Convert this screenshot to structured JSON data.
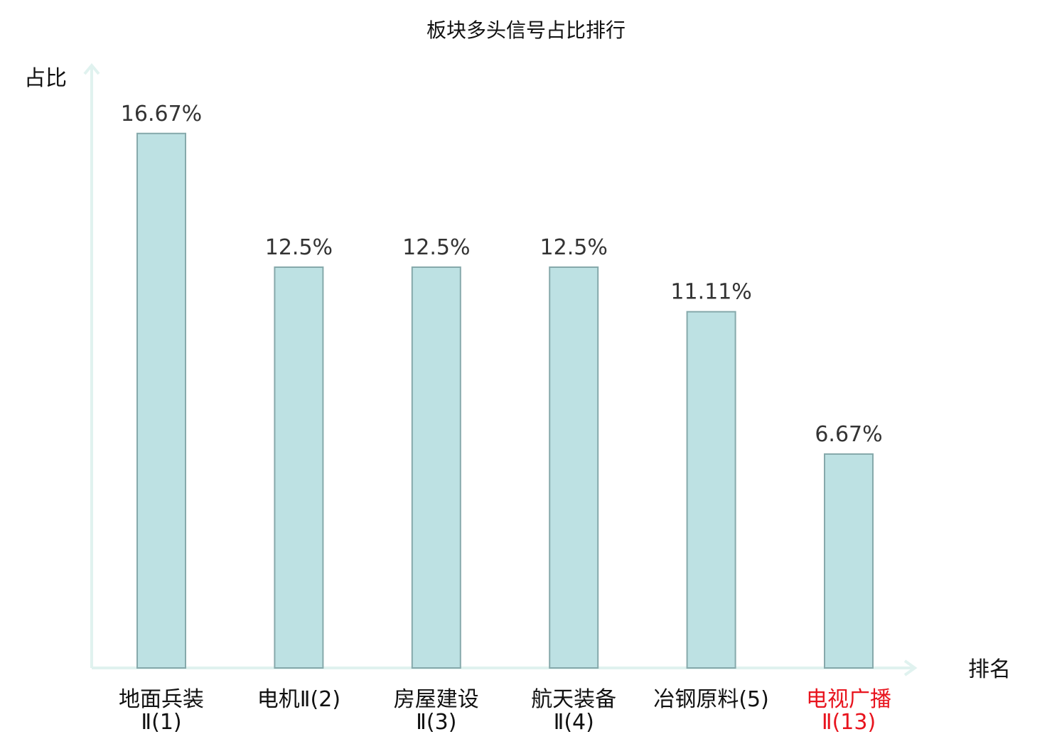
{
  "chart_data": {
    "type": "bar",
    "title": "板块多头信号占比排行",
    "ylabel": "占比",
    "xlabel": "排名",
    "categories": [
      {
        "line1": "地面兵装",
        "line2": "Ⅱ(1)",
        "highlight": false
      },
      {
        "line1": "电机Ⅱ(2)",
        "line2": "",
        "highlight": false
      },
      {
        "line1": "房屋建设",
        "line2": "Ⅱ(3)",
        "highlight": false
      },
      {
        "line1": "航天装备",
        "line2": "Ⅱ(4)",
        "highlight": false
      },
      {
        "line1": "冶钢原料(5)",
        "line2": "",
        "highlight": false
      },
      {
        "line1": "电视广播",
        "line2": "Ⅱ(13)",
        "highlight": true
      }
    ],
    "values": [
      16.67,
      12.5,
      12.5,
      12.5,
      11.11,
      6.67
    ],
    "value_labels": [
      "16.67%",
      "12.5%",
      "12.5%",
      "12.5%",
      "11.11%",
      "6.67%"
    ],
    "ylim": [
      0,
      18.75
    ],
    "grid": false,
    "legend": "none"
  },
  "colors": {
    "bar_fill": "#bde1e3",
    "bar_stroke": "#86a9ab",
    "axis": "#e0f2ef",
    "label_normal": "#111111",
    "label_highlight": "#e8141e"
  }
}
